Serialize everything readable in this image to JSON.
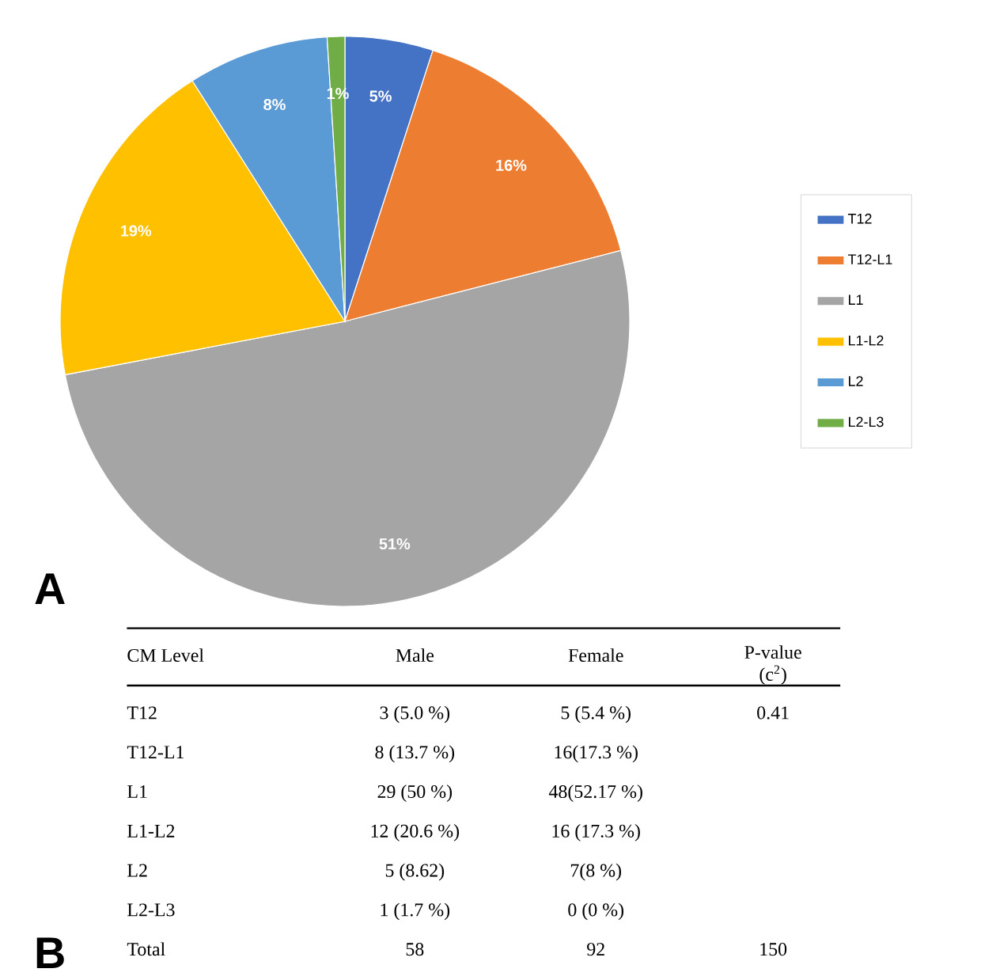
{
  "chart_data": [
    {
      "type": "pie",
      "title": "A",
      "categories": [
        "T12",
        "T12-L1",
        "L1",
        "L1-L2",
        "L2",
        "L2-L3"
      ],
      "values": [
        5,
        16,
        51,
        19,
        8,
        1
      ],
      "value_labels": [
        "5%",
        "16%",
        "51%",
        "19%",
        "8%",
        "1%"
      ],
      "colors": [
        "#4472c4",
        "#ed7d31",
        "#a5a5a5",
        "#ffc000",
        "#5b9bd5",
        "#70ad47"
      ],
      "legend": "right"
    },
    {
      "type": "other",
      "title": "B",
      "categories": [
        "CM Level",
        "Male",
        "Female",
        "P-value (c$^{2}$)"
      ],
      "cell_labels": [
        [
          "T12",
          "3 (5.0 %)",
          "5 (5.4 %)",
          "0.41"
        ],
        [
          "T12-L1",
          "8 (13.7 %)",
          "16(17.3 %)",
          null
        ],
        [
          "L1",
          "29 (50 %)",
          "48(52.17 %)",
          null
        ],
        [
          "L1-L2",
          "12 (20.6 %)",
          "16 (17.3 %)",
          null
        ],
        [
          "L2",
          "5 (8.62)",
          "7(8 %)",
          null
        ],
        [
          "L2-L3",
          "1 (1.7 %)",
          "0 (0 %)",
          null
        ],
        [
          "Total",
          "58",
          "92",
          "150"
        ]
      ]
    }
  ]
}
